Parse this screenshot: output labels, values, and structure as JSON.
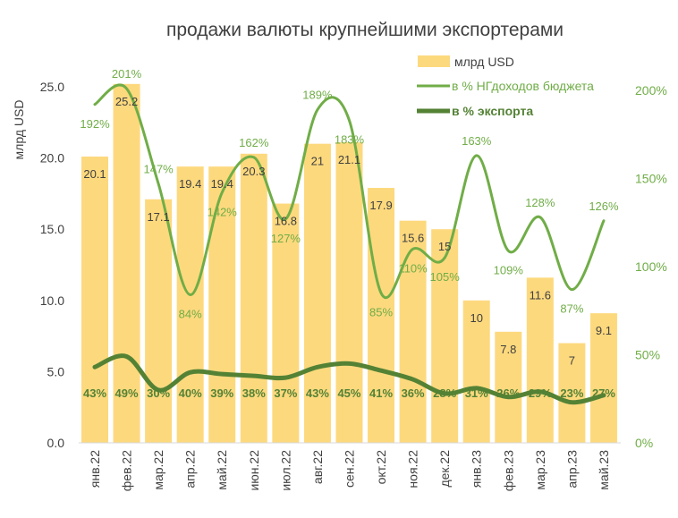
{
  "chart_data": {
    "type": "bar",
    "title": "продажи валюты крупнейшими экспортерами",
    "ylabel": "млрд USD",
    "ylim": [
      0,
      25
    ],
    "yticks": [
      "0.0",
      "5.0",
      "10.0",
      "15.0",
      "20.0",
      "25.0"
    ],
    "y2lim": [
      0,
      200
    ],
    "y2ticks": [
      "0%",
      "50%",
      "100%",
      "150%",
      "200%"
    ],
    "legend_position": "top-right",
    "grid": false,
    "categories": [
      "янв.22",
      "фев.22",
      "мар.22",
      "апр.22",
      "май.22",
      "июн.22",
      "июл.22",
      "авг.22",
      "сен.22",
      "окт.22",
      "ноя.22",
      "дек.22",
      "янв.23",
      "фев.23",
      "мар.23",
      "апр.23",
      "май.23"
    ],
    "series": [
      {
        "name": "млрд USD",
        "type": "bar",
        "axis": "left",
        "color": "#FDD97E",
        "values": [
          20.1,
          25.2,
          17.1,
          19.4,
          19.4,
          20.3,
          16.8,
          21.0,
          21.1,
          17.9,
          15.6,
          15.0,
          10.0,
          7.8,
          11.6,
          7.0,
          9.1
        ]
      },
      {
        "name": "в % НГдоходов бюджета",
        "type": "line",
        "axis": "right",
        "color": "#70AD47",
        "smooth": true,
        "values": [
          192,
          201,
          147,
          84,
          142,
          162,
          127,
          189,
          183,
          85,
          110,
          105,
          163,
          109,
          128,
          87,
          126
        ]
      },
      {
        "name": "в % экспорта",
        "type": "line",
        "axis": "right",
        "color": "#548235",
        "smooth": true,
        "values": [
          43,
          49,
          30,
          40,
          39,
          38,
          37,
          43,
          45,
          41,
          36,
          28,
          31,
          26,
          29,
          23,
          27
        ]
      }
    ]
  }
}
